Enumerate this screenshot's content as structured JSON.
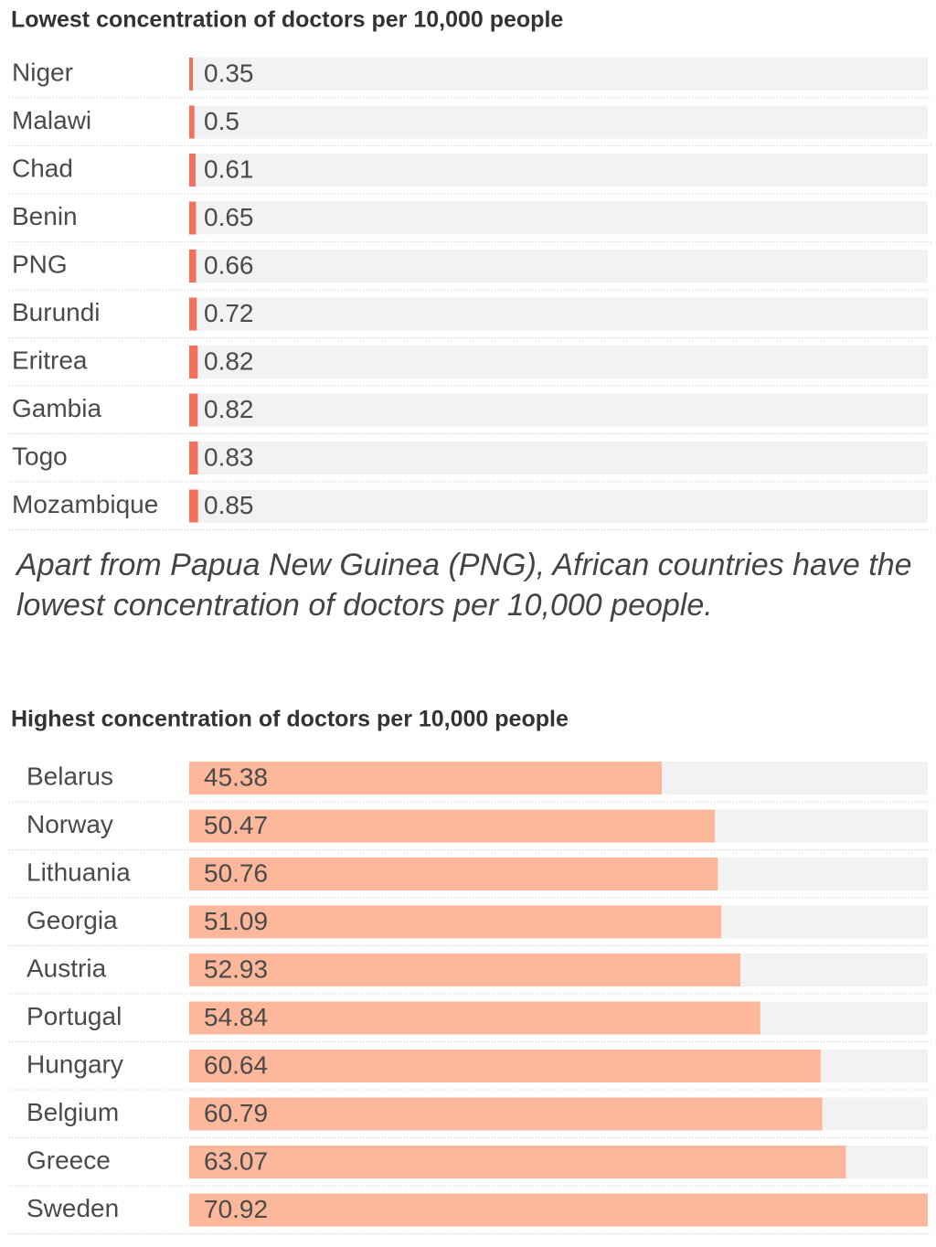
{
  "chart_data": [
    {
      "type": "bar",
      "orientation": "horizontal",
      "title": "Lowest concentration of doctors per 10,000 people",
      "categories": [
        "Niger",
        "Malawi",
        "Chad",
        "Benin",
        "PNG",
        "Burundi",
        "Eritrea",
        "Gambia",
        "Togo",
        "Mozambique"
      ],
      "values": [
        0.35,
        0.5,
        0.61,
        0.65,
        0.66,
        0.72,
        0.82,
        0.82,
        0.83,
        0.85
      ],
      "color": "#f4705c",
      "xlim": [
        0,
        70.92
      ]
    },
    {
      "type": "bar",
      "orientation": "horizontal",
      "title": "Highest concentration of doctors per 10,000 people",
      "categories": [
        "Belarus",
        "Norway",
        "Lithuania",
        "Georgia",
        "Austria",
        "Portugal",
        "Hungary",
        "Belgium",
        "Greece",
        "Sweden"
      ],
      "values": [
        45.38,
        50.47,
        50.76,
        51.09,
        52.93,
        54.84,
        60.64,
        60.79,
        63.07,
        70.92
      ],
      "color": "#fdb89b",
      "xlim": [
        0,
        70.92
      ]
    }
  ],
  "caption": "Apart from Papua New Guinea (PNG), African countries have the lowest concentration of doctors per 10,000 people."
}
